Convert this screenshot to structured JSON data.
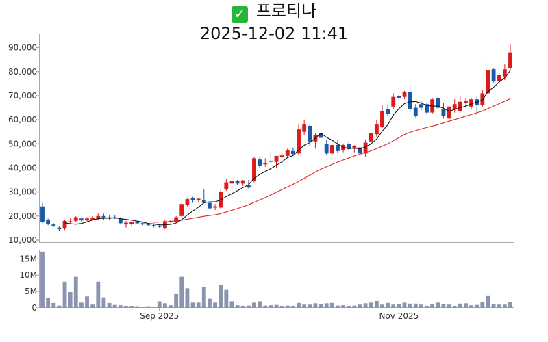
{
  "header": {
    "check_icon": "check-mark-icon",
    "stock_name": "프로티나",
    "datetime": "2025-12-02 11:41"
  },
  "colors": {
    "up": "#dd1b1b",
    "down": "#1a5aa8",
    "ma_short": "#111111",
    "ma_long": "#e02020",
    "volume": "#8a94ae"
  },
  "chart_data": [
    {
      "type": "candlestick",
      "title": "",
      "ylim": [
        10000,
        95000
      ],
      "y_ticks": [
        10000,
        20000,
        30000,
        40000,
        50000,
        60000,
        70000,
        80000,
        90000
      ],
      "y_tick_labels": [
        "10,000",
        "20,000",
        "30,000",
        "40,000",
        "50,000",
        "60,000",
        "70,000",
        "80,000",
        "90,000"
      ],
      "x_tick_labels": [
        {
          "index": 21,
          "label": "Sep 2025"
        },
        {
          "index": 64,
          "label": "Nov 2025"
        }
      ],
      "ohlc": [
        [
          24000,
          25500,
          17000,
          17500
        ],
        [
          18500,
          19000,
          16200,
          16800
        ],
        [
          16500,
          17000,
          15500,
          16000
        ],
        [
          15200,
          15800,
          13800,
          14500
        ],
        [
          14800,
          18500,
          14200,
          18000
        ],
        [
          17500,
          19000,
          17000,
          17800
        ],
        [
          18000,
          20000,
          17500,
          19500
        ],
        [
          19000,
          19500,
          17500,
          18200
        ],
        [
          18200,
          19500,
          17800,
          19000
        ],
        [
          18500,
          20000,
          18000,
          19200
        ],
        [
          18800,
          21000,
          18500,
          20000
        ],
        [
          20000,
          21000,
          18500,
          19000
        ],
        [
          19000,
          20500,
          18500,
          19500
        ],
        [
          19500,
          20500,
          18800,
          19000
        ],
        [
          19000,
          19500,
          16500,
          17000
        ],
        [
          16500,
          18000,
          15200,
          17200
        ],
        [
          16800,
          17800,
          15800,
          17500
        ],
        [
          17500,
          18000,
          16800,
          17000
        ],
        [
          17000,
          17500,
          16200,
          16500
        ],
        [
          16500,
          17000,
          15800,
          16200
        ],
        [
          16200,
          17000,
          15300,
          15800
        ],
        [
          15800,
          16500,
          15000,
          15500
        ],
        [
          15000,
          18500,
          14500,
          17800
        ],
        [
          17500,
          18500,
          17000,
          18000
        ],
        [
          17500,
          20000,
          17200,
          19500
        ],
        [
          20000,
          25500,
          19500,
          25000
        ],
        [
          24500,
          27500,
          24000,
          27000
        ],
        [
          27500,
          28000,
          25500,
          26500
        ],
        [
          26500,
          27500,
          26000,
          27200
        ],
        [
          26500,
          31000,
          26000,
          25500
        ],
        [
          25500,
          25800,
          23000,
          23200
        ],
        [
          23500,
          25000,
          22500,
          24000
        ],
        [
          23500,
          31000,
          23000,
          30000
        ],
        [
          31000,
          35500,
          30500,
          34000
        ],
        [
          33500,
          35000,
          31500,
          34500
        ],
        [
          34500,
          35000,
          33000,
          33500
        ],
        [
          33500,
          35000,
          32500,
          34800
        ],
        [
          33000,
          35000,
          31500,
          31800
        ],
        [
          34500,
          44500,
          34000,
          44000
        ],
        [
          43500,
          44500,
          40000,
          41000
        ],
        [
          41500,
          44000,
          40500,
          42000
        ],
        [
          43000,
          47000,
          42000,
          42500
        ],
        [
          42500,
          45000,
          40000,
          45000
        ],
        [
          44500,
          46000,
          43500,
          45200
        ],
        [
          45000,
          48000,
          44500,
          47500
        ],
        [
          47000,
          48500,
          45000,
          45800
        ],
        [
          46000,
          58000,
          45500,
          56000
        ],
        [
          55000,
          60000,
          53500,
          58000
        ],
        [
          57500,
          58500,
          49000,
          51000
        ],
        [
          51000,
          54500,
          48000,
          53500
        ],
        [
          54500,
          56500,
          51500,
          52500
        ],
        [
          50000,
          51500,
          45500,
          46000
        ],
        [
          46000,
          50000,
          45500,
          49500
        ],
        [
          49500,
          51500,
          46000,
          47000
        ],
        [
          47500,
          50000,
          46500,
          49500
        ],
        [
          50000,
          51000,
          47000,
          47800
        ],
        [
          48000,
          49500,
          46500,
          49000
        ],
        [
          48500,
          51000,
          45500,
          46000
        ],
        [
          46000,
          51500,
          44500,
          50500
        ],
        [
          51000,
          55000,
          50500,
          54500
        ],
        [
          54000,
          60000,
          53000,
          58000
        ],
        [
          57000,
          66000,
          56500,
          63500
        ],
        [
          64500,
          66000,
          61500,
          62500
        ],
        [
          65500,
          71000,
          64500,
          69500
        ],
        [
          70000,
          71000,
          67500,
          69000
        ],
        [
          69500,
          72000,
          68500,
          71500
        ],
        [
          71500,
          74500,
          63000,
          64500
        ],
        [
          65000,
          66500,
          61000,
          61500
        ],
        [
          66500,
          68000,
          64000,
          65000
        ],
        [
          66500,
          67000,
          62500,
          63000
        ],
        [
          63000,
          69000,
          62500,
          68500
        ],
        [
          69000,
          69500,
          64500,
          65000
        ],
        [
          64500,
          67000,
          60500,
          61500
        ],
        [
          60500,
          66500,
          57000,
          65500
        ],
        [
          64500,
          68500,
          63000,
          66500
        ],
        [
          63500,
          70000,
          63000,
          67500
        ],
        [
          67000,
          69000,
          65500,
          68000
        ],
        [
          65500,
          69000,
          64500,
          68500
        ],
        [
          68500,
          69500,
          62000,
          66000
        ],
        [
          66000,
          72500,
          65500,
          71000
        ],
        [
          71000,
          86000,
          70000,
          80500
        ],
        [
          81000,
          81500,
          75500,
          76000
        ],
        [
          76000,
          79500,
          75000,
          78500
        ],
        [
          78000,
          83000,
          76500,
          81000
        ],
        [
          81500,
          91500,
          80500,
          88000
        ]
      ],
      "ma_short": [
        null,
        null,
        null,
        null,
        17200,
        16800,
        16600,
        16900,
        17600,
        18400,
        18900,
        19100,
        19100,
        19300,
        18900,
        18600,
        18300,
        17900,
        17500,
        16900,
        16700,
        16300,
        16400,
        16500,
        17100,
        18500,
        20400,
        22100,
        23700,
        25500,
        25900,
        25900,
        26700,
        28100,
        29300,
        30500,
        31800,
        33000,
        35700,
        37300,
        38500,
        39700,
        41100,
        42500,
        44300,
        45100,
        47500,
        49400,
        50500,
        52400,
        54400,
        52700,
        51500,
        49900,
        48600,
        48100,
        48200,
        47900,
        48700,
        50000,
        52000,
        55300,
        57900,
        62000,
        64600,
        66700,
        67500,
        67600,
        66900,
        66000,
        65700,
        65700,
        64800,
        63500,
        64300,
        65000,
        65700,
        66600,
        67400,
        68200,
        71800,
        73500,
        75700,
        77500,
        80500
      ],
      "ma_long": [
        null,
        null,
        null,
        null,
        null,
        null,
        null,
        null,
        null,
        null,
        null,
        null,
        null,
        null,
        null,
        null,
        null,
        null,
        null,
        null,
        17400,
        17500,
        17600,
        17800,
        18000,
        18300,
        18700,
        19100,
        19500,
        19900,
        20200,
        20500,
        21000,
        21700,
        22400,
        23100,
        23900,
        24700,
        25700,
        26700,
        27700,
        28800,
        29900,
        31000,
        32100,
        33200,
        34400,
        35700,
        37000,
        38300,
        39500,
        40500,
        41500,
        42400,
        43300,
        44100,
        45000,
        45700,
        46400,
        47100,
        48000,
        49000,
        50000,
        51300,
        52600,
        53900,
        54800,
        55500,
        56200,
        56800,
        57400,
        58000,
        58700,
        59400,
        60100,
        60800,
        61500,
        62200,
        62900,
        63600,
        64700,
        65700,
        66700,
        67700,
        68800
      ],
      "volume_ylim": [
        0,
        18000000
      ],
      "volume_ticks": [
        0,
        5000000,
        10000000,
        15000000
      ],
      "volume_tick_labels": [
        "0",
        "5M",
        "10M",
        "15M"
      ],
      "volume": [
        17200000,
        3000000,
        1500000,
        700000,
        8000000,
        4800000,
        9500000,
        1600000,
        3500000,
        1000000,
        8000000,
        3200000,
        1500000,
        900000,
        800000,
        500000,
        400000,
        300000,
        200000,
        300000,
        200000,
        2000000,
        1400000,
        800000,
        4200000,
        9500000,
        6000000,
        1600000,
        1600000,
        6500000,
        2800000,
        1600000,
        7000000,
        5500000,
        2000000,
        800000,
        600000,
        700000,
        1600000,
        2000000,
        700000,
        800000,
        900000,
        500000,
        700000,
        500000,
        1500000,
        1000000,
        1000000,
        1400000,
        1200000,
        1400000,
        1500000,
        700000,
        800000,
        600000,
        700000,
        1000000,
        1400000,
        1600000,
        2100000,
        1000000,
        1500000,
        1000000,
        1200000,
        1600000,
        1300000,
        1300000,
        1000000,
        600000,
        1100000,
        1600000,
        1200000,
        1000000,
        600000,
        1300000,
        1400000,
        800000,
        900000,
        1800000,
        3600000,
        1100000,
        1000000,
        1000000,
        1800000
      ]
    }
  ]
}
